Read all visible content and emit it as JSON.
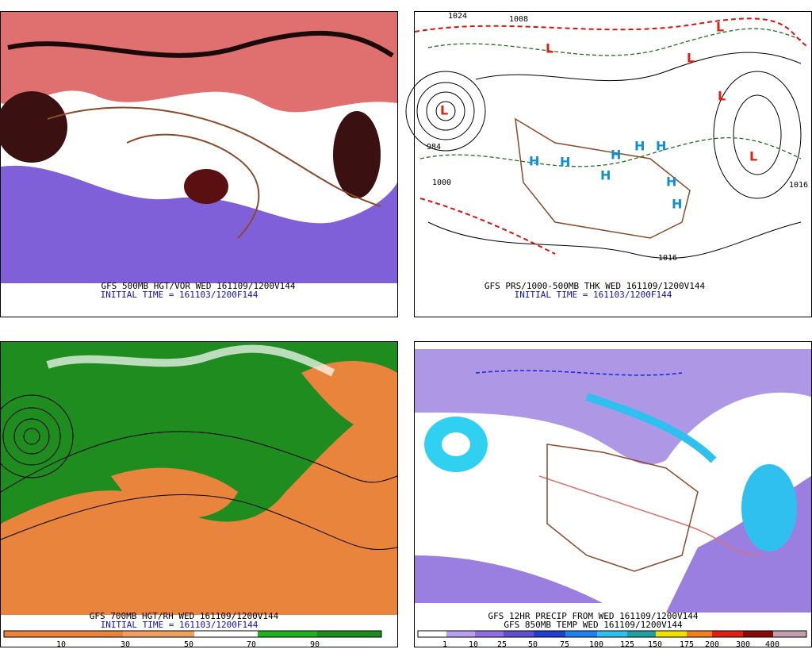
{
  "panels": [
    {
      "caption": "GFS 500MB HGT/VOR WED 161109/1200V144",
      "initial_time": "INITIAL TIME = 161103/1200F144"
    },
    {
      "caption": "GFS PRS/1000-500MB THK WED 161109/1200V144",
      "initial_time": "INITIAL TIME = 161103/1200F144",
      "lows": [
        "L",
        "L",
        "L",
        "L",
        "L",
        "L"
      ],
      "highs": [
        "H",
        "H",
        "H",
        "H",
        "H",
        "H",
        "H",
        "H"
      ],
      "isobars": [
        "1024",
        "1008",
        "984",
        "1000",
        "1016",
        "1016"
      ]
    },
    {
      "caption": "GFS 700MB HGT/RH WED 161109/1200V144",
      "initial_time": "INITIAL TIME = 161103/1200F144",
      "colorbar": [
        "10",
        "30",
        "50",
        "70",
        "90"
      ]
    },
    {
      "caption": "GFS 12HR PRECIP FROM WED 161109/1200V144",
      "caption2": "GFS 850MB TEMP WED 161109/1200V144",
      "colorbar": [
        "1",
        "10",
        "25",
        "50",
        "75",
        "100",
        "125",
        "150",
        "175",
        "200",
        "300",
        "400"
      ]
    }
  ]
}
